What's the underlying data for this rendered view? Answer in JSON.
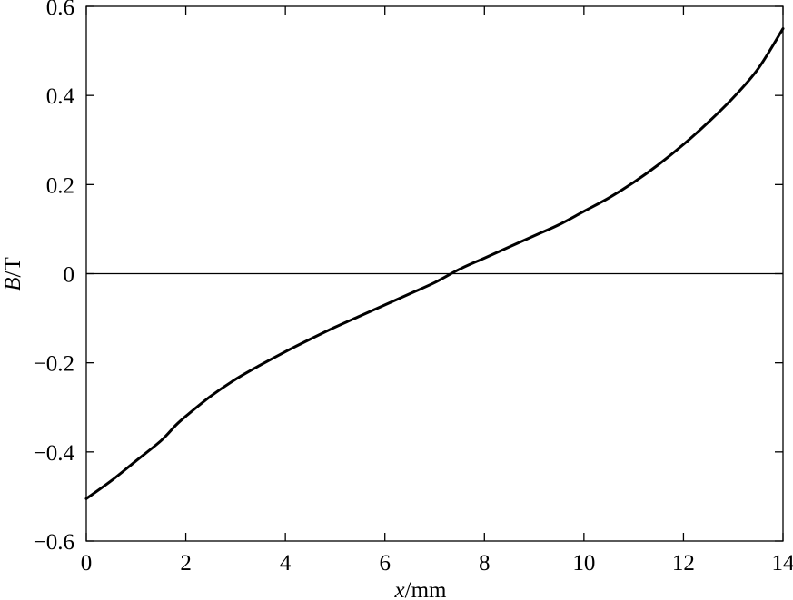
{
  "chart_data": {
    "type": "line",
    "title": "",
    "xlabel_var": "x",
    "xlabel_unit": "/mm",
    "ylabel_var": "B",
    "ylabel_unit": "/T",
    "xlim": [
      0,
      14
    ],
    "ylim": [
      -0.6,
      0.6
    ],
    "xticks": [
      0,
      2,
      4,
      6,
      8,
      10,
      12,
      14
    ],
    "xtick_labels": [
      "0",
      "2",
      "4",
      "6",
      "8",
      "10",
      "12",
      "14"
    ],
    "yticks": [
      -0.6,
      -0.4,
      -0.2,
      0,
      0.2,
      0.4,
      0.6
    ],
    "ytick_labels": [
      "−0.6",
      "−0.4",
      "−0.2",
      "0",
      "0.2",
      "0.4",
      "0.6"
    ],
    "grid": false,
    "reference_line_y": 0,
    "series": [
      {
        "x": [
          0,
          0.5,
          1,
          1.5,
          1.8,
          2,
          2.5,
          3,
          3.5,
          4,
          4.5,
          5,
          5.5,
          6,
          6.5,
          7,
          7.5,
          8,
          8.5,
          9,
          9.5,
          10,
          10.5,
          11,
          11.5,
          12,
          12.5,
          13,
          13.5,
          14
        ],
        "y": [
          -0.505,
          -0.465,
          -0.42,
          -0.375,
          -0.34,
          -0.32,
          -0.275,
          -0.237,
          -0.205,
          -0.175,
          -0.147,
          -0.12,
          -0.095,
          -0.07,
          -0.045,
          -0.02,
          0.01,
          0.035,
          0.06,
          0.085,
          0.11,
          0.14,
          0.17,
          0.205,
          0.245,
          0.29,
          0.34,
          0.395,
          0.46,
          0.55
        ]
      }
    ]
  }
}
